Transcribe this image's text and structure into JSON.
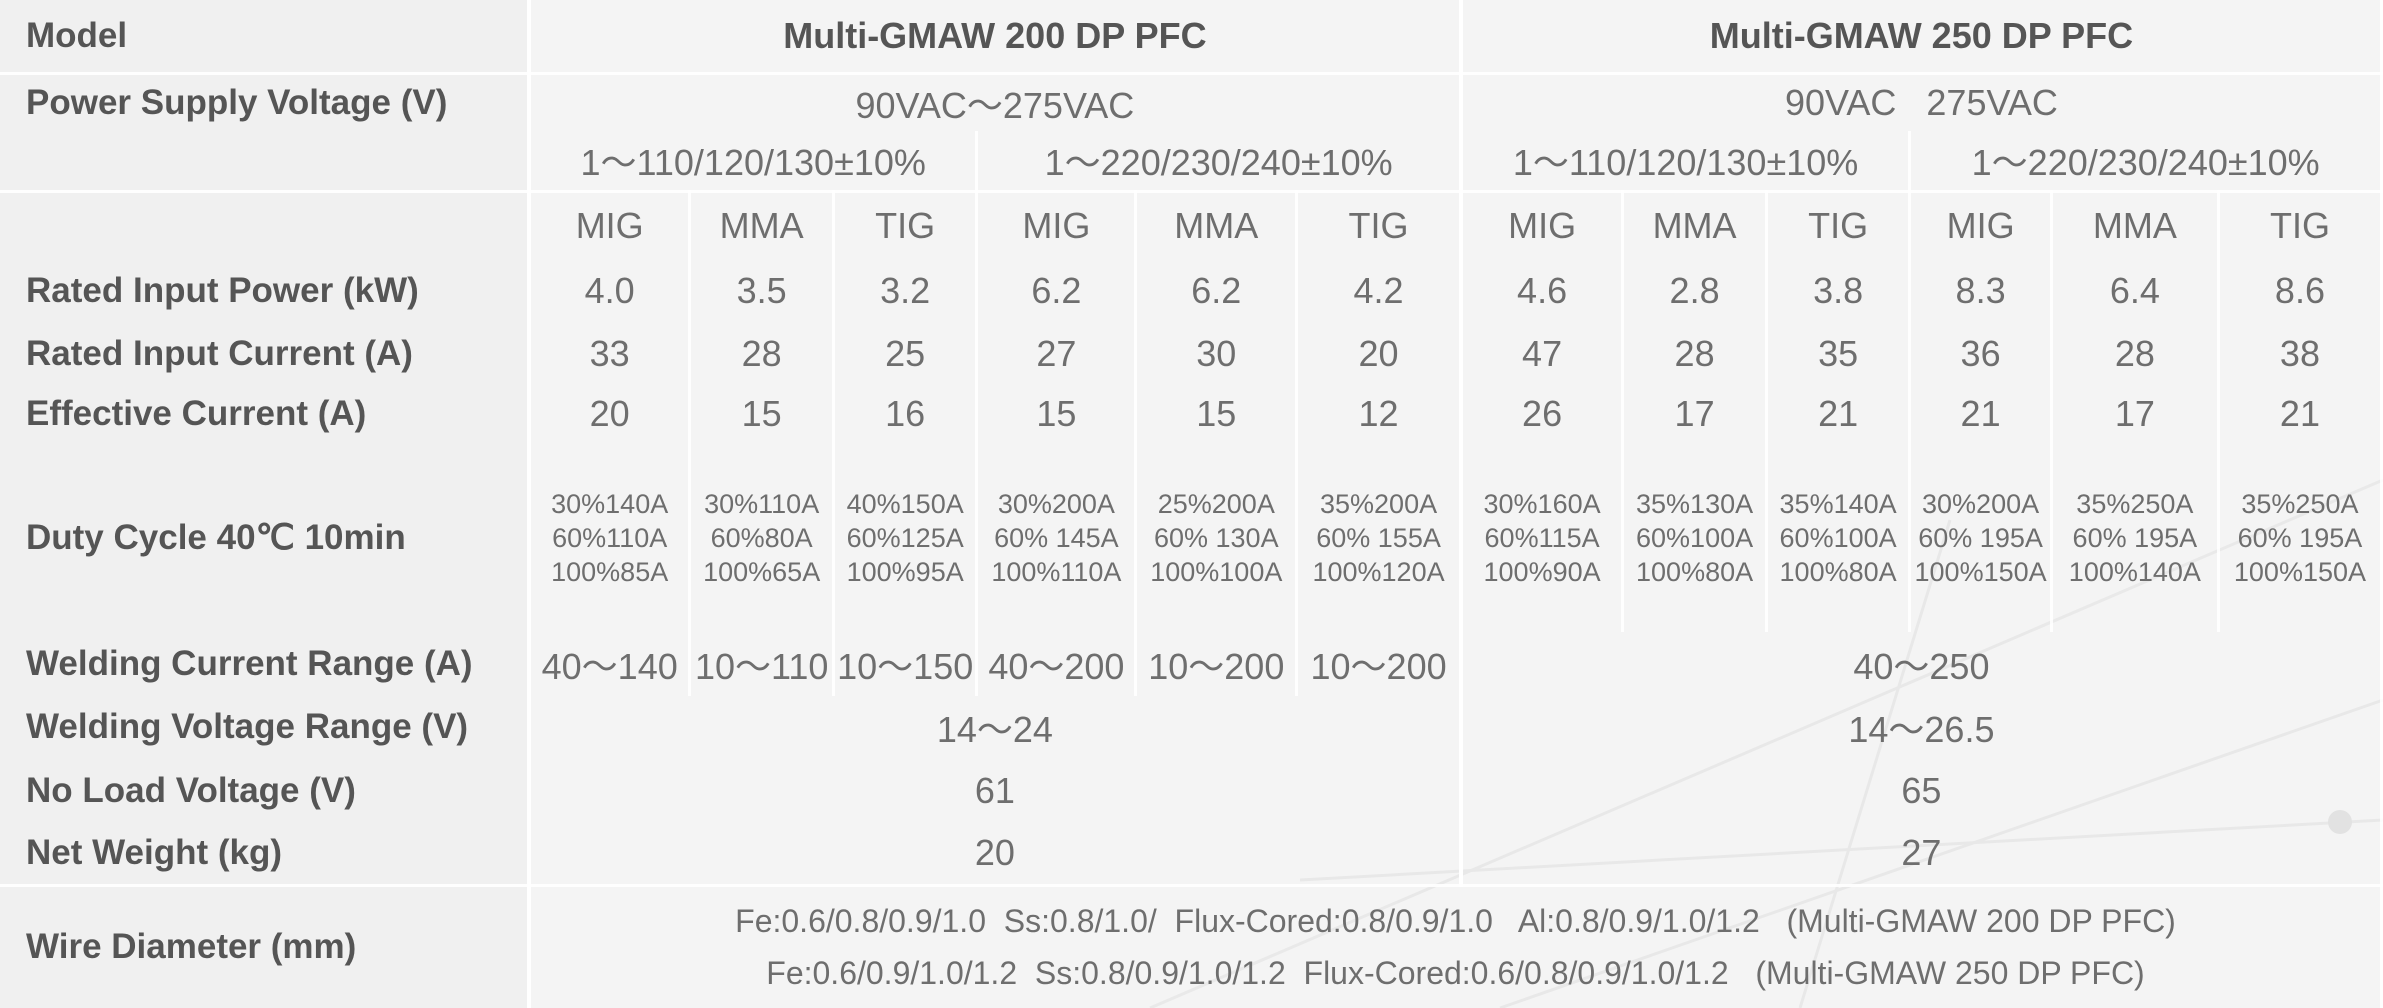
{
  "models": [
    "Multi-GMAW 200 DP PFC",
    "Multi-GMAW 250 DP PFC"
  ],
  "labels": {
    "model": "Model",
    "power_supply": "Power Supply Voltage (V)",
    "rated_power": "Rated Input Power (kW)",
    "rated_current": "Rated Input Current (A)",
    "effective_current": "Effective Current (A)",
    "duty_cycle": "Duty Cycle 40℃  10min",
    "welding_current": "Welding Current Range (A)",
    "welding_voltage": "Welding Voltage Range (V)",
    "no_load": "No Load Voltage (V)",
    "net_weight": "Net Weight (kg)",
    "wire_diameter": "Wire Diameter (mm)"
  },
  "power_supply": {
    "m1_range": "90VAC～275VAC",
    "m2_range": "90VAC   275VAC",
    "phases": [
      "1～110/120/130±10%",
      "1～220/230/240±10%",
      "1～110/120/130±10%",
      "1～220/230/240±10%"
    ]
  },
  "processes": [
    "MIG",
    "MMA",
    "TIG",
    "MIG",
    "MMA",
    "TIG",
    "MIG",
    "MMA",
    "TIG",
    "MIG",
    "MMA",
    "TIG"
  ],
  "rated_power": [
    "4.0",
    "3.5",
    "3.2",
    "6.2",
    "6.2",
    "4.2",
    "4.6",
    "2.8",
    "3.8",
    "8.3",
    "6.4",
    "8.6"
  ],
  "rated_current": [
    "33",
    "28",
    "25",
    "27",
    "30",
    "20",
    "47",
    "28",
    "35",
    "36",
    "28",
    "38"
  ],
  "effective_current": [
    "20",
    "15",
    "16",
    "15",
    "15",
    "12",
    "26",
    "17",
    "21",
    "21",
    "17",
    "21"
  ],
  "duty_cycle": [
    [
      "30%140A",
      "60%110A",
      "100%85A"
    ],
    [
      "30%110A",
      "60%80A",
      "100%65A"
    ],
    [
      "40%150A",
      "60%125A",
      "100%95A"
    ],
    [
      "30%200A",
      "60% 145A",
      "100%110A"
    ],
    [
      "25%200A",
      "60% 130A",
      "100%100A"
    ],
    [
      "35%200A",
      "60% 155A",
      "100%120A"
    ],
    [
      "30%160A",
      "60%115A",
      "100%90A"
    ],
    [
      "35%130A",
      "60%100A",
      "100%80A"
    ],
    [
      "35%140A",
      "60%100A",
      "100%80A"
    ],
    [
      "30%200A",
      "60% 195A",
      "100%150A"
    ],
    [
      "35%250A",
      "60% 195A",
      "100%140A"
    ],
    [
      "35%250A",
      "60% 195A",
      "100%150A"
    ]
  ],
  "welding_current": {
    "m1": [
      "40～140",
      "10～110",
      "10～150",
      "40～200",
      "10～200",
      "10～200"
    ],
    "m2": "40～250"
  },
  "welding_voltage": [
    "14～24",
    "14～26.5"
  ],
  "no_load": [
    "61",
    "65"
  ],
  "net_weight": [
    "20",
    "27"
  ],
  "wire_diameter": [
    "Fe:0.6/0.8/0.9/1.0  Ss:0.8/1.0/  Flux-Cored:0.8/0.9/1.0   Al:0.8/0.9/1.0/1.2   (Multi-GMAW 200 DP PFC)",
    "Fe:0.6/0.9/1.0/1.2  Ss:0.8/0.9/1.0/1.2  Flux-Cored:0.6/0.8/0.9/1.0/1.2   (Multi-GMAW 250 DP PFC)"
  ]
}
